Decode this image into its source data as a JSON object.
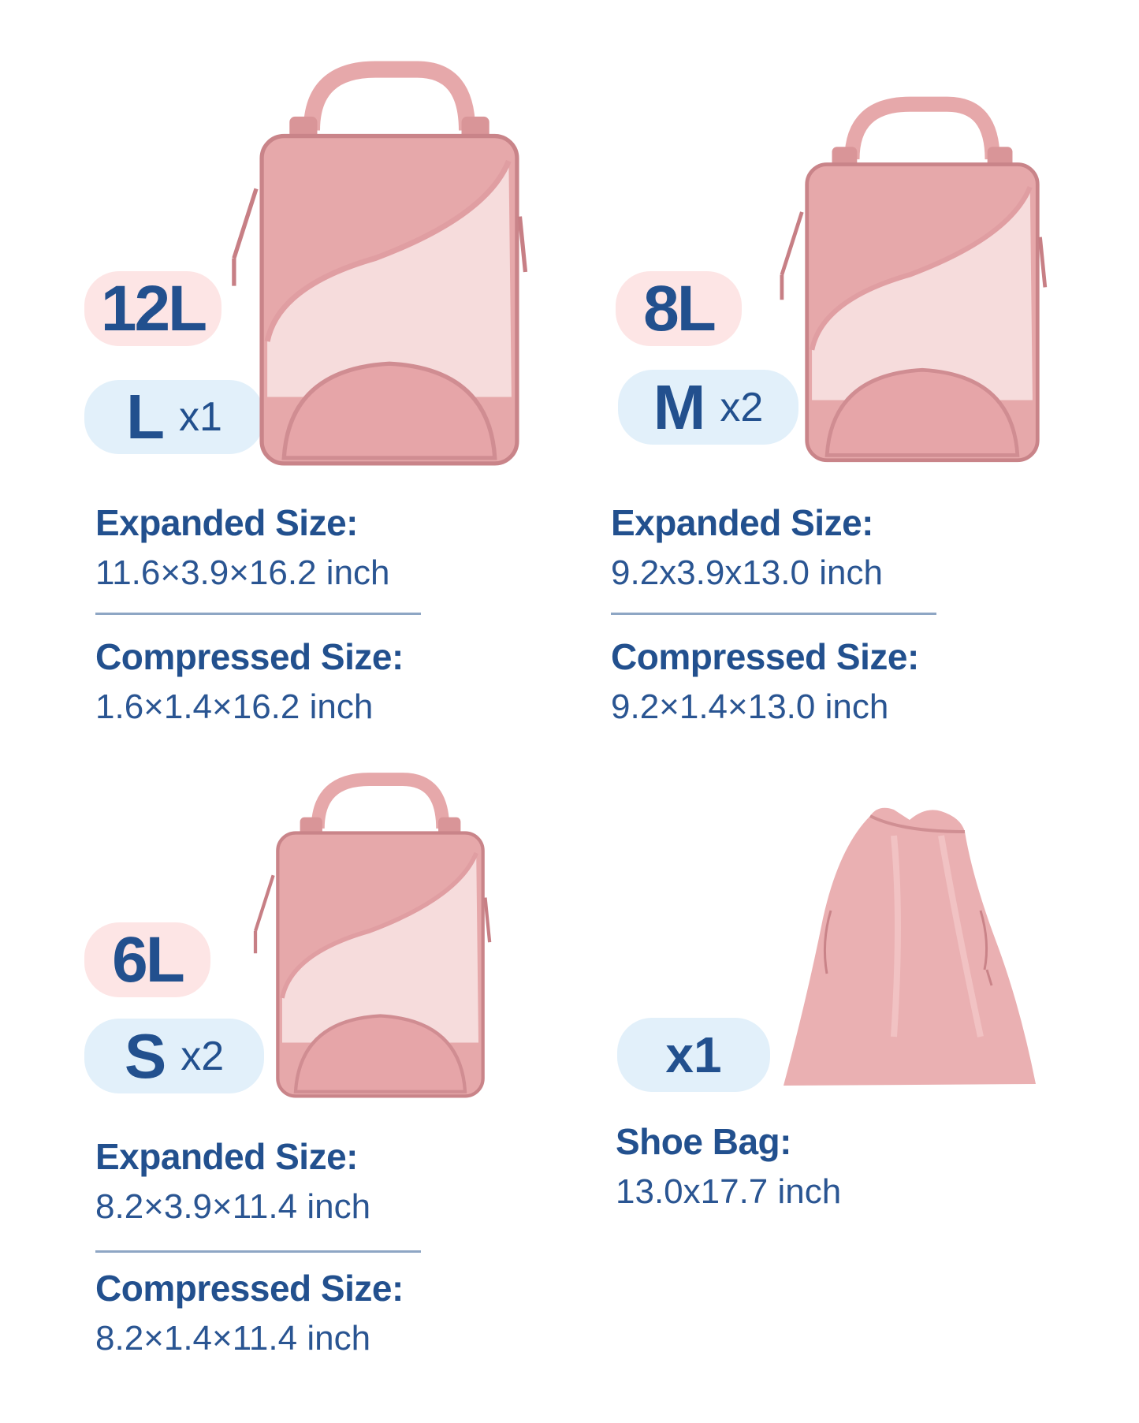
{
  "colors": {
    "text": "#22508e",
    "capacity_badge": "#fde5e5",
    "quantity_badge": "#e2f0fa",
    "bag_pink": "#e6a8aa",
    "bag_mesh": "#f6dcdc",
    "divider": "#8ea6c4"
  },
  "products": [
    {
      "capacity": "12L",
      "size": "L",
      "quantity": "x1",
      "expanded_label": "Expanded Size:",
      "expanded_value": "11.6×3.9×16.2 inch",
      "compressed_label": "Compressed Size:",
      "compressed_value": "1.6×1.4×16.2 inch"
    },
    {
      "capacity": "8L",
      "size": "M",
      "quantity": "x2",
      "expanded_label": "Expanded Size:",
      "expanded_value": "9.2x3.9x13.0 inch",
      "compressed_label": "Compressed Size:",
      "compressed_value": "9.2×1.4×13.0 inch"
    },
    {
      "capacity": "6L",
      "size": "S",
      "quantity": "x2",
      "expanded_label": "Expanded Size:",
      "expanded_value": "8.2×3.9×11.4 inch",
      "compressed_label": "Compressed Size:",
      "compressed_value": "8.2×1.4×11.4 inch"
    }
  ],
  "shoe_bag": {
    "quantity": "x1",
    "label": "Shoe Bag:",
    "value": "13.0x17.7 inch"
  }
}
